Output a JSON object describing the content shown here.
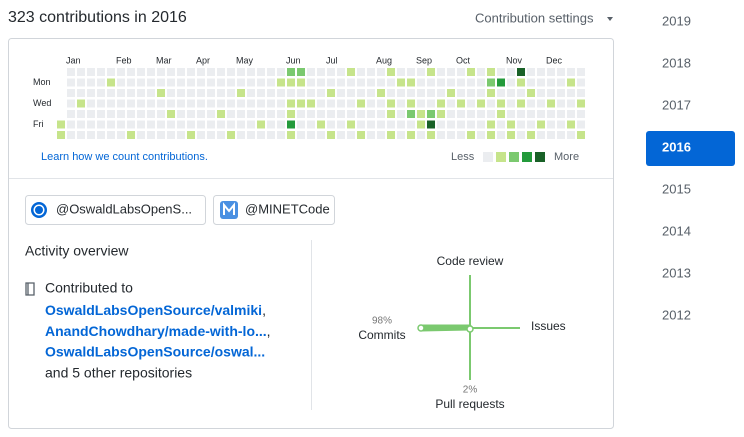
{
  "header": {
    "title": "323 contributions in 2016",
    "settings": "Contribution settings"
  },
  "contribution_graph": {
    "months": [
      "Jan",
      "Feb",
      "Mar",
      "Apr",
      "May",
      "Jun",
      "Jul",
      "Aug",
      "Sep",
      "Oct",
      "Nov",
      "Dec"
    ],
    "days": [
      "Mon",
      "Wed",
      "Fri"
    ],
    "colors": [
      "#ebedf0",
      "#c6e48b",
      "#7bc96f",
      "#239a3b",
      "#196127"
    ],
    "weeks": [
      [
        null,
        null,
        null,
        null,
        null,
        1,
        1
      ],
      [
        0,
        0,
        0,
        0,
        0,
        0,
        0
      ],
      [
        0,
        0,
        0,
        1,
        0,
        0,
        0
      ],
      [
        0,
        0,
        0,
        0,
        0,
        0,
        0
      ],
      [
        0,
        0,
        0,
        0,
        0,
        0,
        0
      ],
      [
        0,
        1,
        0,
        0,
        0,
        0,
        0
      ],
      [
        0,
        0,
        0,
        0,
        0,
        0,
        0
      ],
      [
        0,
        0,
        0,
        0,
        0,
        0,
        1
      ],
      [
        0,
        0,
        0,
        0,
        0,
        0,
        0
      ],
      [
        0,
        0,
        0,
        0,
        0,
        0,
        0
      ],
      [
        0,
        0,
        1,
        0,
        0,
        0,
        0
      ],
      [
        0,
        0,
        0,
        0,
        1,
        0,
        0
      ],
      [
        0,
        0,
        0,
        0,
        0,
        0,
        0
      ],
      [
        0,
        0,
        0,
        0,
        0,
        0,
        1
      ],
      [
        0,
        0,
        0,
        0,
        0,
        0,
        0
      ],
      [
        0,
        0,
        0,
        0,
        0,
        0,
        0
      ],
      [
        0,
        0,
        0,
        0,
        1,
        0,
        0
      ],
      [
        0,
        0,
        0,
        0,
        0,
        0,
        1
      ],
      [
        0,
        0,
        1,
        0,
        0,
        0,
        0
      ],
      [
        0,
        0,
        0,
        0,
        0,
        0,
        0
      ],
      [
        0,
        0,
        0,
        0,
        0,
        1,
        0
      ],
      [
        0,
        0,
        0,
        0,
        0,
        0,
        0
      ],
      [
        0,
        1,
        0,
        0,
        0,
        0,
        0
      ],
      [
        2,
        1,
        0,
        1,
        1,
        3,
        1
      ],
      [
        2,
        1,
        0,
        1,
        0,
        0,
        0
      ],
      [
        0,
        0,
        0,
        1,
        0,
        0,
        0
      ],
      [
        0,
        0,
        0,
        0,
        0,
        1,
        0
      ],
      [
        0,
        0,
        1,
        0,
        0,
        0,
        1
      ],
      [
        0,
        0,
        0,
        0,
        0,
        0,
        0
      ],
      [
        1,
        0,
        0,
        0,
        0,
        1,
        0
      ],
      [
        0,
        0,
        0,
        1,
        0,
        0,
        1
      ],
      [
        0,
        0,
        0,
        0,
        0,
        0,
        0
      ],
      [
        0,
        0,
        1,
        0,
        0,
        0,
        0
      ],
      [
        1,
        0,
        0,
        1,
        1,
        0,
        1
      ],
      [
        0,
        1,
        0,
        0,
        0,
        0,
        0
      ],
      [
        0,
        1,
        0,
        1,
        2,
        0,
        1
      ],
      [
        0,
        0,
        0,
        0,
        1,
        1,
        0
      ],
      [
        1,
        0,
        0,
        0,
        2,
        4,
        1
      ],
      [
        0,
        0,
        0,
        1,
        1,
        0,
        0
      ],
      [
        0,
        0,
        1,
        0,
        0,
        0,
        0
      ],
      [
        0,
        0,
        0,
        1,
        0,
        0,
        0
      ],
      [
        1,
        0,
        0,
        0,
        0,
        0,
        1
      ],
      [
        0,
        0,
        0,
        1,
        0,
        0,
        0
      ],
      [
        1,
        2,
        1,
        0,
        0,
        1,
        1
      ],
      [
        0,
        3,
        0,
        1,
        1,
        0,
        0
      ],
      [
        0,
        0,
        0,
        0,
        0,
        1,
        1
      ],
      [
        4,
        1,
        0,
        1,
        0,
        0,
        0
      ],
      [
        0,
        0,
        1,
        0,
        0,
        0,
        1
      ],
      [
        0,
        0,
        0,
        0,
        0,
        1,
        0
      ],
      [
        0,
        0,
        0,
        1,
        0,
        0,
        0
      ],
      [
        0,
        0,
        0,
        0,
        0,
        0,
        0
      ],
      [
        0,
        1,
        0,
        0,
        0,
        1,
        0
      ],
      [
        0,
        0,
        0,
        1,
        0,
        0,
        1
      ]
    ],
    "learn_link": "Learn how we count contributions.",
    "less": "Less",
    "more": "More"
  },
  "organizations": [
    "@OswaldLabsOpenS...",
    "@MINETCode"
  ],
  "activity": {
    "title": "Activity overview",
    "contributed_to": "Contributed to",
    "repositories": [
      "OswaldLabsOpenSource/valmiki",
      "AnandChowdhary/made-with-lo...",
      "OswaldLabsOpenSource/oswal..."
    ],
    "separator": ",",
    "others": "and 5 other repositories",
    "radar": {
      "code_review": {
        "label": "Code review"
      },
      "issues": {
        "label": "Issues"
      },
      "pull_requests": {
        "label": "Pull requests",
        "percent": 2,
        "percent_label": "2%"
      },
      "commits": {
        "label": "Commits",
        "percent": 98,
        "percent_label": "98%"
      }
    }
  },
  "years": [
    {
      "label": "2019",
      "selected": false
    },
    {
      "label": "2018",
      "selected": false
    },
    {
      "label": "2017",
      "selected": false
    },
    {
      "label": "2016",
      "selected": true
    },
    {
      "label": "2015",
      "selected": false
    },
    {
      "label": "2014",
      "selected": false
    },
    {
      "label": "2013",
      "selected": false
    },
    {
      "label": "2012",
      "selected": false
    }
  ]
}
